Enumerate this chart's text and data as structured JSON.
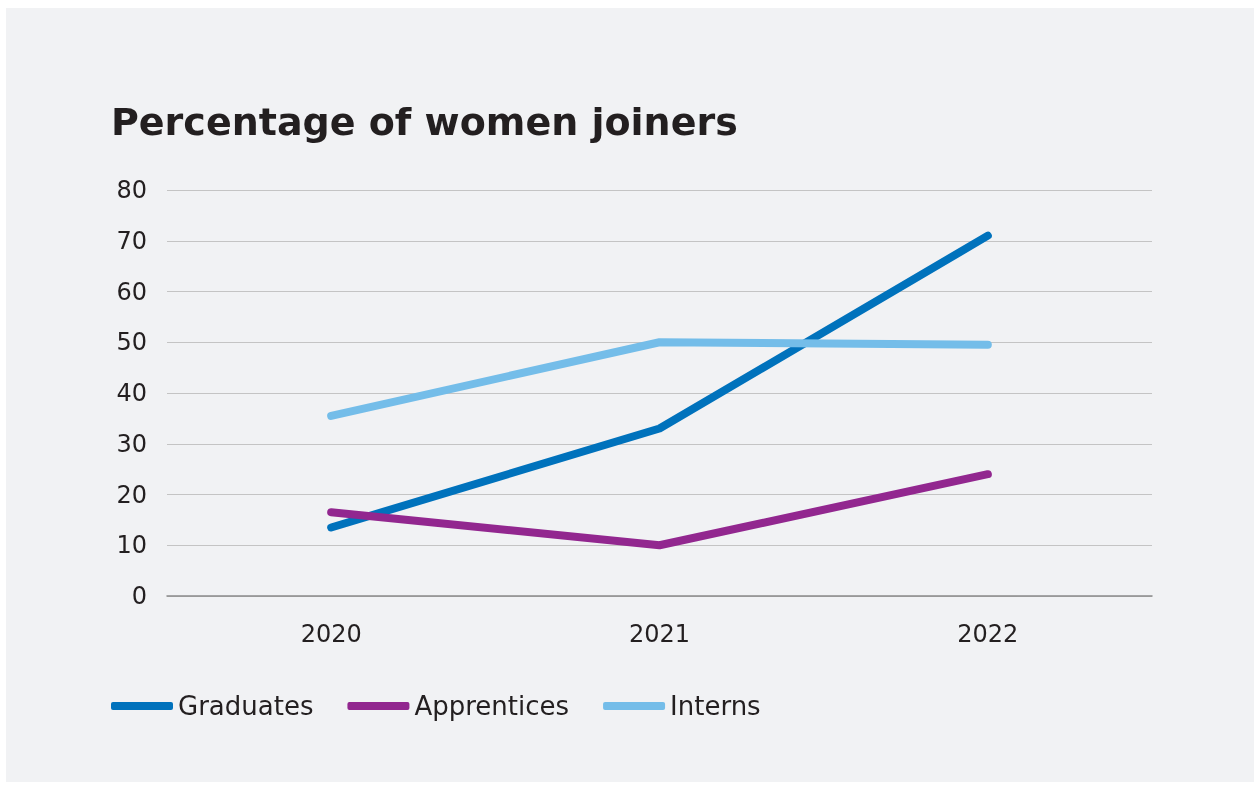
{
  "chart_data": {
    "type": "line",
    "title": "Percentage of women joiners",
    "categories": [
      "2020",
      "2021",
      "2022"
    ],
    "series": [
      {
        "name": "Graduates",
        "color": "#0072bc",
        "values": [
          13.5,
          33,
          71
        ]
      },
      {
        "name": "Apprentices",
        "color": "#92278f",
        "values": [
          16.5,
          10,
          24
        ]
      },
      {
        "name": "Interns",
        "color": "#74bde9",
        "values": [
          35.5,
          50,
          49.5
        ]
      }
    ],
    "ylim": [
      0,
      80
    ],
    "yticks": [
      0,
      10,
      20,
      30,
      40,
      50,
      60,
      70,
      80
    ],
    "grid": "y",
    "legend": "bottom",
    "marker": "none",
    "line_style": "solid"
  }
}
